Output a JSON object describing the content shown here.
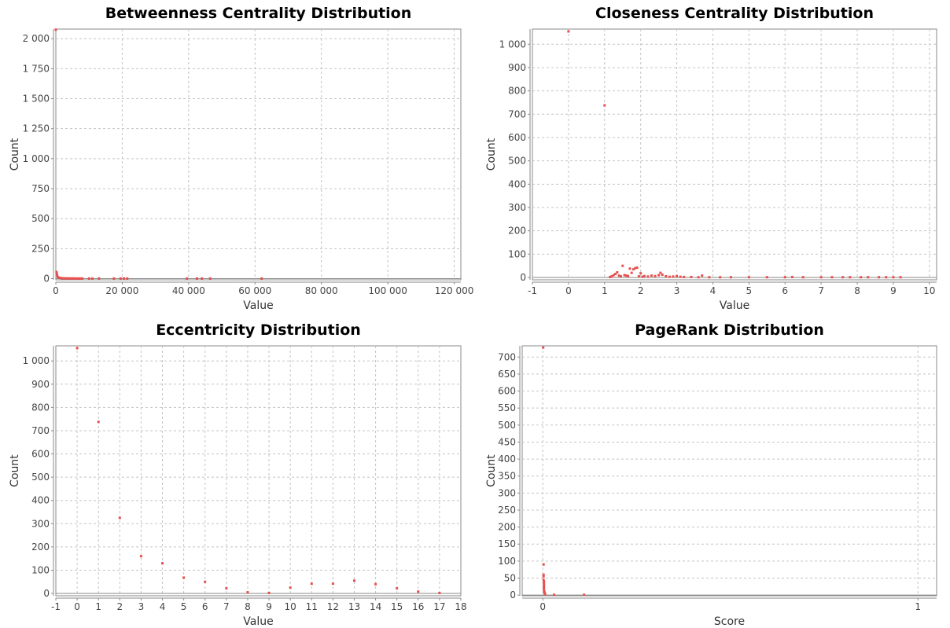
{
  "chart_data": [
    {
      "type": "scatter",
      "title": "Betweenness Centrality Distribution",
      "xlabel": "Value",
      "ylabel": "Count",
      "xlim": [
        0,
        122000
      ],
      "ylim": [
        -10,
        2080
      ],
      "xticks": [
        0,
        20000,
        40000,
        60000,
        80000,
        100000,
        120000
      ],
      "xtick_labels": [
        "0",
        "20 000",
        "40 000",
        "60 000",
        "80 000",
        "100 000",
        "120 000"
      ],
      "yticks": [
        0,
        250,
        500,
        750,
        1000,
        1250,
        1500,
        1750,
        2000
      ],
      "ytick_labels": [
        "0",
        "250",
        "500",
        "750",
        "1 000",
        "1 250",
        "1 500",
        "1 750",
        "2 000"
      ],
      "grid": true,
      "color": "#e8504f",
      "points": [
        [
          0,
          2075
        ],
        [
          200,
          55
        ],
        [
          300,
          40
        ],
        [
          400,
          25
        ],
        [
          600,
          12
        ],
        [
          900,
          8
        ],
        [
          1200,
          6
        ],
        [
          1600,
          4
        ],
        [
          2000,
          3
        ],
        [
          2500,
          3
        ],
        [
          3000,
          2
        ],
        [
          3500,
          2
        ],
        [
          4000,
          2
        ],
        [
          4500,
          1
        ],
        [
          5000,
          2
        ],
        [
          5500,
          1
        ],
        [
          6000,
          1
        ],
        [
          6500,
          1
        ],
        [
          7000,
          1
        ],
        [
          7500,
          1
        ],
        [
          8000,
          1
        ],
        [
          10000,
          1
        ],
        [
          11000,
          1
        ],
        [
          13000,
          1
        ],
        [
          17500,
          1
        ],
        [
          19500,
          1
        ],
        [
          20500,
          1
        ],
        [
          21500,
          1
        ],
        [
          39500,
          1
        ],
        [
          42500,
          1
        ],
        [
          44000,
          1
        ],
        [
          46500,
          1
        ],
        [
          62000,
          1
        ]
      ]
    },
    {
      "type": "scatter",
      "title": "Closeness Centrality Distribution",
      "xlabel": "Value",
      "ylabel": "Count",
      "xlim": [
        -1,
        10.2
      ],
      "ylim": [
        -10,
        1065
      ],
      "xticks": [
        -1,
        0,
        1,
        2,
        3,
        4,
        5,
        6,
        7,
        8,
        9,
        10
      ],
      "xtick_labels": [
        "-1",
        "0",
        "1",
        "2",
        "3",
        "4",
        "5",
        "6",
        "7",
        "8",
        "9",
        "10"
      ],
      "yticks": [
        0,
        100,
        200,
        300,
        400,
        500,
        600,
        700,
        800,
        900,
        1000
      ],
      "ytick_labels": [
        "0",
        "100",
        "200",
        "300",
        "400",
        "500",
        "600",
        "700",
        "800",
        "900",
        "1 000"
      ],
      "grid": true,
      "color": "#e8504f",
      "points": [
        [
          0,
          1055
        ],
        [
          1,
          738
        ],
        [
          1.15,
          2
        ],
        [
          1.2,
          5
        ],
        [
          1.25,
          10
        ],
        [
          1.3,
          15
        ],
        [
          1.35,
          22
        ],
        [
          1.4,
          8
        ],
        [
          1.45,
          5
        ],
        [
          1.5,
          50
        ],
        [
          1.55,
          10
        ],
        [
          1.6,
          8
        ],
        [
          1.65,
          6
        ],
        [
          1.7,
          38
        ],
        [
          1.75,
          20
        ],
        [
          1.8,
          35
        ],
        [
          1.85,
          40
        ],
        [
          1.9,
          42
        ],
        [
          1.95,
          5
        ],
        [
          2.0,
          18
        ],
        [
          2.05,
          3
        ],
        [
          2.1,
          6
        ],
        [
          2.2,
          4
        ],
        [
          2.3,
          8
        ],
        [
          2.4,
          6
        ],
        [
          2.5,
          10
        ],
        [
          2.55,
          20
        ],
        [
          2.6,
          12
        ],
        [
          2.7,
          5
        ],
        [
          2.8,
          3
        ],
        [
          2.9,
          4
        ],
        [
          3.0,
          6
        ],
        [
          3.1,
          3
        ],
        [
          3.2,
          2
        ],
        [
          3.4,
          2
        ],
        [
          3.6,
          1
        ],
        [
          3.7,
          8
        ],
        [
          3.9,
          1
        ],
        [
          4.2,
          1
        ],
        [
          4.5,
          1
        ],
        [
          5.0,
          1
        ],
        [
          5.5,
          1
        ],
        [
          6.0,
          1
        ],
        [
          6.2,
          2
        ],
        [
          6.5,
          1
        ],
        [
          7.0,
          1
        ],
        [
          7.3,
          1
        ],
        [
          7.6,
          1
        ],
        [
          7.8,
          1
        ],
        [
          8.1,
          1
        ],
        [
          8.3,
          1
        ],
        [
          8.6,
          1
        ],
        [
          8.8,
          1
        ],
        [
          9.0,
          1
        ],
        [
          9.2,
          1
        ]
      ]
    },
    {
      "type": "scatter",
      "title": "Eccentricity Distribution",
      "xlabel": "Value",
      "ylabel": "Count",
      "xlim": [
        -1,
        18
      ],
      "ylim": [
        -10,
        1065
      ],
      "xticks": [
        -1,
        0,
        1,
        2,
        3,
        4,
        5,
        6,
        7,
        8,
        9,
        10,
        11,
        12,
        13,
        14,
        15,
        16,
        17,
        18
      ],
      "xtick_labels": [
        "-1",
        "0",
        "1",
        "2",
        "3",
        "4",
        "5",
        "6",
        "7",
        "8",
        "9",
        "10",
        "11",
        "12",
        "13",
        "14",
        "15",
        "16",
        "17",
        "18"
      ],
      "yticks": [
        0,
        100,
        200,
        300,
        400,
        500,
        600,
        700,
        800,
        900,
        1000
      ],
      "ytick_labels": [
        "0",
        "100",
        "200",
        "300",
        "400",
        "500",
        "600",
        "700",
        "800",
        "900",
        "1 000"
      ],
      "grid": true,
      "color": "#e8504f",
      "points": [
        [
          0,
          1055
        ],
        [
          1,
          738
        ],
        [
          2,
          325
        ],
        [
          3,
          160
        ],
        [
          4,
          130
        ],
        [
          5,
          68
        ],
        [
          6,
          50
        ],
        [
          7,
          22
        ],
        [
          8,
          5
        ],
        [
          9,
          2
        ],
        [
          10,
          25
        ],
        [
          11,
          42
        ],
        [
          12,
          42
        ],
        [
          13,
          55
        ],
        [
          14,
          40
        ],
        [
          15,
          22
        ],
        [
          16,
          8
        ],
        [
          17,
          2
        ]
      ]
    },
    {
      "type": "scatter",
      "title": "PageRank Distribution",
      "xlabel": "Score",
      "ylabel": "Count",
      "xlim": [
        -0.055,
        1.05
      ],
      "ylim": [
        -2,
        733
      ],
      "xticks": [
        0,
        1
      ],
      "xtick_labels": [
        "0",
        "1"
      ],
      "yticks": [
        0,
        50,
        100,
        150,
        200,
        250,
        300,
        350,
        400,
        450,
        500,
        550,
        600,
        650,
        700
      ],
      "ytick_labels": [
        "0",
        "50",
        "100",
        "150",
        "200",
        "250",
        "300",
        "350",
        "400",
        "450",
        "500",
        "550",
        "600",
        "650",
        "700"
      ],
      "grid": true,
      "color": "#e8504f",
      "points": [
        [
          0.001,
          728
        ],
        [
          0.002,
          90
        ],
        [
          0.002,
          60
        ],
        [
          0.002,
          55
        ],
        [
          0.002,
          45
        ],
        [
          0.003,
          40
        ],
        [
          0.003,
          35
        ],
        [
          0.003,
          30
        ],
        [
          0.003,
          25
        ],
        [
          0.003,
          20
        ],
        [
          0.003,
          15
        ],
        [
          0.004,
          10
        ],
        [
          0.004,
          8
        ],
        [
          0.005,
          5
        ],
        [
          0.006,
          3
        ],
        [
          0.03,
          1
        ],
        [
          0.11,
          1
        ]
      ]
    }
  ]
}
